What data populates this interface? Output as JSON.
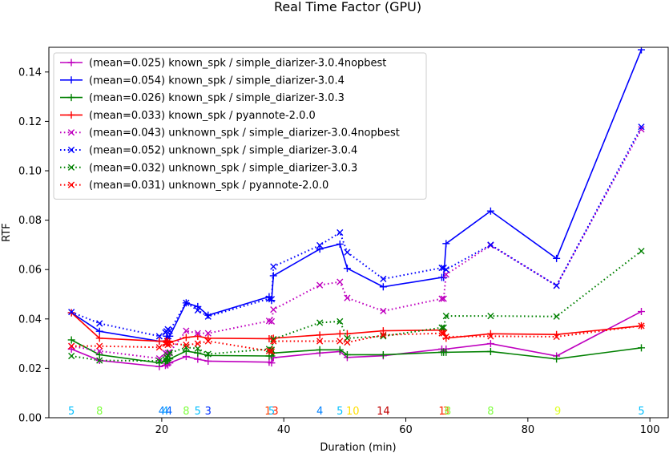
{
  "chart_data": {
    "type": "line",
    "title": "Real Time Factor (GPU)",
    "xlabel": "Duration (min)",
    "ylabel": "RTF",
    "xlim": [
      1.5,
      103
    ],
    "ylim": [
      0,
      0.15
    ],
    "xticks": [
      20,
      40,
      60,
      80,
      100
    ],
    "yticks": [
      0.0,
      0.02,
      0.04,
      0.06,
      0.08,
      0.1,
      0.12,
      0.14
    ],
    "grid": false,
    "legend": "top-left",
    "x": [
      5.2,
      9.8,
      19.6,
      20.6,
      20.8,
      21.0,
      21.3,
      24.0,
      25.9,
      27.6,
      37.6,
      38.0,
      38.3,
      45.9,
      49.2,
      50.4,
      56.3,
      65.9,
      66.2,
      66.6,
      73.9,
      84.7,
      98.6
    ],
    "series": [
      {
        "name": "(mean=0.025) known_spk / simple_diarizer-3.0.4nopbest",
        "color": "#bf00bf",
        "style": "solid",
        "marker": "plus",
        "values": [
          0.0278,
          0.0232,
          0.0207,
          0.0212,
          0.0218,
          0.0214,
          0.0222,
          0.0248,
          0.0237,
          0.0229,
          0.0225,
          0.0222,
          0.0243,
          0.0262,
          0.0268,
          0.0244,
          0.0251,
          0.0278,
          0.0268,
          0.0278,
          0.03,
          0.025,
          0.043
        ]
      },
      {
        "name": "(mean=0.054) known_spk / simple_diarizer-3.0.4",
        "color": "#0000ff",
        "style": "solid",
        "marker": "plus",
        "values": [
          0.0425,
          0.035,
          0.031,
          0.031,
          0.033,
          0.032,
          0.033,
          0.0465,
          0.045,
          0.0415,
          0.049,
          0.0475,
          0.0575,
          0.0683,
          0.0703,
          0.0605,
          0.053,
          0.0568,
          0.0568,
          0.0705,
          0.0837,
          0.0645,
          0.149
        ]
      },
      {
        "name": "(mean=0.026) known_spk / simple_diarizer-3.0.3",
        "color": "#008000",
        "style": "solid",
        "marker": "plus",
        "values": [
          0.0315,
          0.0255,
          0.0222,
          0.0228,
          0.0232,
          0.0232,
          0.0238,
          0.027,
          0.0262,
          0.0252,
          0.025,
          0.025,
          0.0262,
          0.0275,
          0.0275,
          0.0255,
          0.0255,
          0.0265,
          0.0265,
          0.0265,
          0.0268,
          0.0238,
          0.0283
        ]
      },
      {
        "name": "(mean=0.033) known_spk / pyannote-2.0.0",
        "color": "#ff0000",
        "style": "solid",
        "marker": "plus",
        "values": [
          0.0425,
          0.0322,
          0.031,
          0.031,
          0.0305,
          0.031,
          0.0305,
          0.0325,
          0.033,
          0.0322,
          0.032,
          0.032,
          0.0322,
          0.0335,
          0.034,
          0.034,
          0.0352,
          0.0355,
          0.0355,
          0.0322,
          0.034,
          0.0337,
          0.0372
        ]
      },
      {
        "name": "(mean=0.043) unknown_spk / simple_diarizer-3.0.4nopbest",
        "color": "#bf00bf",
        "style": "dotted",
        "marker": "x",
        "values": [
          0.029,
          0.027,
          0.024,
          0.0262,
          0.0258,
          0.0262,
          0.0265,
          0.0352,
          0.0342,
          0.0342,
          0.0392,
          0.039,
          0.0438,
          0.0537,
          0.055,
          0.0485,
          0.0432,
          0.0482,
          0.0482,
          0.058,
          0.0698,
          0.0535,
          0.1168
        ]
      },
      {
        "name": "(mean=0.052) unknown_spk / simple_diarizer-3.0.4",
        "color": "#0000ff",
        "style": "dotted",
        "marker": "x",
        "values": [
          0.0428,
          0.0382,
          0.033,
          0.0345,
          0.035,
          0.0358,
          0.0352,
          0.0465,
          0.0435,
          0.041,
          0.0482,
          0.048,
          0.0612,
          0.0698,
          0.075,
          0.067,
          0.0562,
          0.0607,
          0.0607,
          0.06,
          0.07,
          0.0535,
          0.1178
        ]
      },
      {
        "name": "(mean=0.032) unknown_spk / simple_diarizer-3.0.3",
        "color": "#008000",
        "style": "dotted",
        "marker": "x",
        "values": [
          0.025,
          0.0232,
          0.023,
          0.0235,
          0.0245,
          0.0252,
          0.0262,
          0.0285,
          0.028,
          0.0258,
          0.0278,
          0.0275,
          0.0318,
          0.0385,
          0.039,
          0.0322,
          0.033,
          0.0365,
          0.0365,
          0.0412,
          0.0412,
          0.041,
          0.0675
        ]
      },
      {
        "name": "(mean=0.031) unknown_spk / pyannote-2.0.0",
        "color": "#ff0000",
        "style": "dotted",
        "marker": "x",
        "values": [
          0.029,
          0.029,
          0.0285,
          0.03,
          0.0302,
          0.0295,
          0.03,
          0.0295,
          0.03,
          0.031,
          0.027,
          0.0268,
          0.031,
          0.031,
          0.031,
          0.0305,
          0.0335,
          0.0342,
          0.0342,
          0.0328,
          0.033,
          0.0328,
          0.0372
        ]
      }
    ],
    "annotations": [
      {
        "x": 5.2,
        "text": "5",
        "color": "#00bfff"
      },
      {
        "x": 9.8,
        "text": "8",
        "color": "#7fff3f"
      },
      {
        "x": 20.0,
        "text": "4",
        "color": "#0080ff"
      },
      {
        "x": 20.6,
        "text": "4",
        "color": "#00a0ff"
      },
      {
        "x": 21.2,
        "text": "4",
        "color": "#0060ff"
      },
      {
        "x": 24.0,
        "text": "8",
        "color": "#7fff3f"
      },
      {
        "x": 25.9,
        "text": "5",
        "color": "#00bfff"
      },
      {
        "x": 27.6,
        "text": "3",
        "color": "#0030ff"
      },
      {
        "x": 37.4,
        "text": "1",
        "color": "#ff4000"
      },
      {
        "x": 38.0,
        "text": "5",
        "color": "#00bfff"
      },
      {
        "x": 38.6,
        "text": "3",
        "color": "#ff2000"
      },
      {
        "x": 45.9,
        "text": "4",
        "color": "#0080ff"
      },
      {
        "x": 49.2,
        "text": "5",
        "color": "#00bfff"
      },
      {
        "x": 51.3,
        "text": "10",
        "color": "#ffdf00"
      },
      {
        "x": 56.3,
        "text": "14",
        "color": "#c00000"
      },
      {
        "x": 65.9,
        "text": "1",
        "color": "#ff2000"
      },
      {
        "x": 66.6,
        "text": "3",
        "color": "#ff6000"
      },
      {
        "x": 66.9,
        "text": "8",
        "color": "#7fff3f"
      },
      {
        "x": 73.9,
        "text": "8",
        "color": "#7fff3f"
      },
      {
        "x": 84.9,
        "text": "9",
        "color": "#dfff1f"
      },
      {
        "x": 98.6,
        "text": "5",
        "color": "#00bfff"
      }
    ]
  }
}
